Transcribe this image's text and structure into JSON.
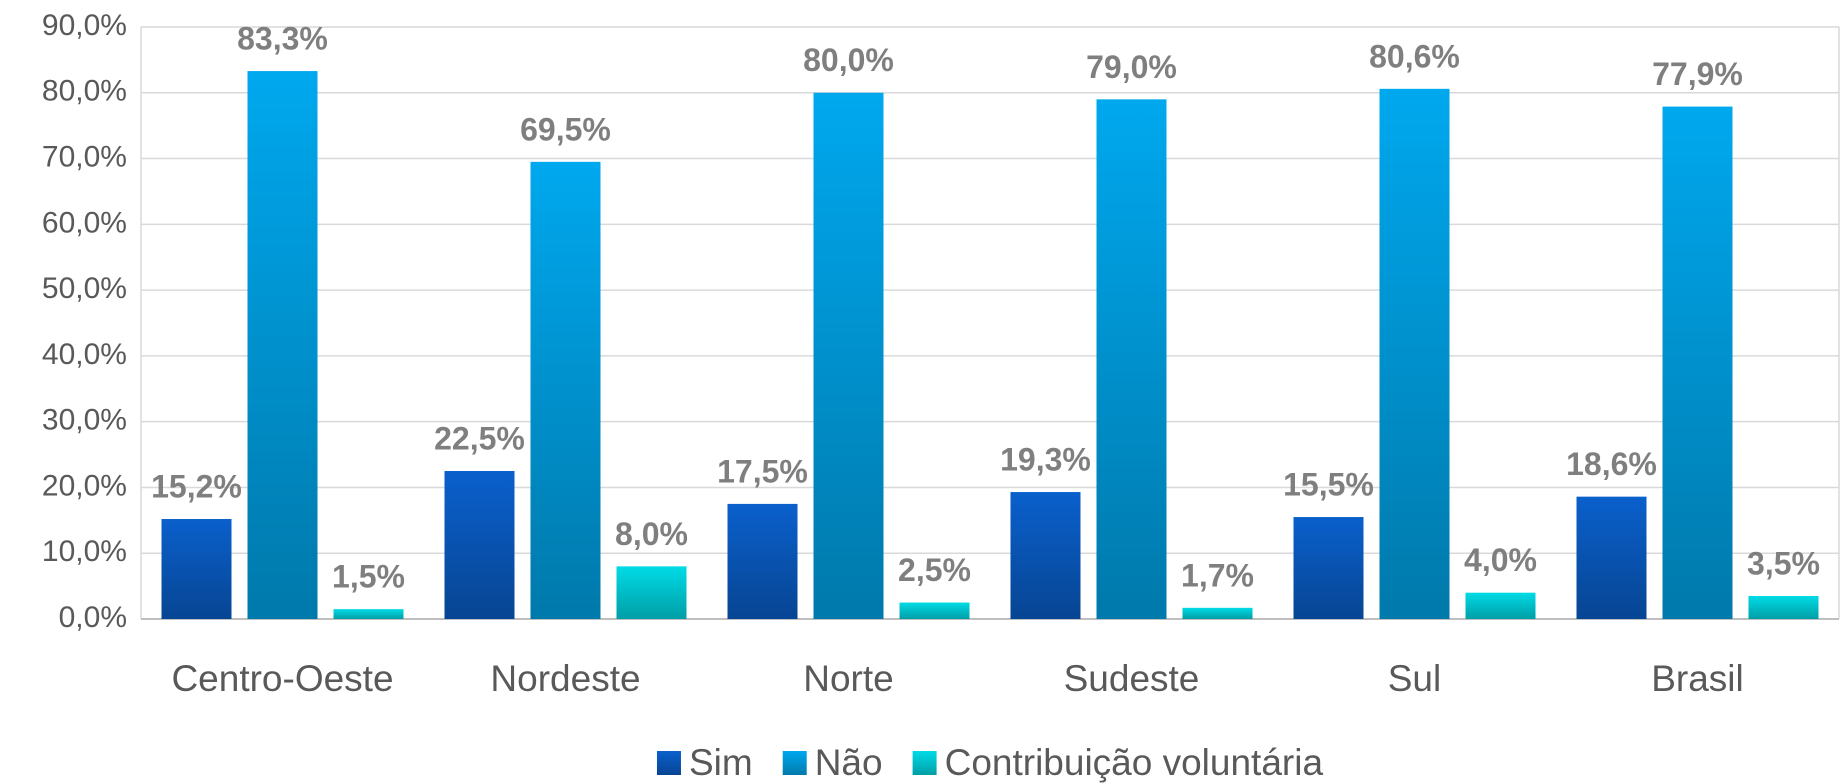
{
  "chart_data": {
    "type": "bar",
    "categories": [
      "Centro-Oeste",
      "Nordeste",
      "Norte",
      "Sudeste",
      "Sul",
      "Brasil"
    ],
    "series": [
      {
        "name": "Sim",
        "color": "#0a60cc",
        "values": [
          15.2,
          22.5,
          17.5,
          19.3,
          15.5,
          18.6
        ],
        "value_labels": [
          "15,2%",
          "22,5%",
          "17,5%",
          "19,3%",
          "15,5%",
          "18,6%"
        ]
      },
      {
        "name": "Não",
        "color": "#00a8ee",
        "values": [
          83.3,
          69.5,
          80.0,
          79.0,
          80.6,
          77.9
        ],
        "value_labels": [
          "83,3%",
          "69,5%",
          "80,0%",
          "79,0%",
          "80,6%",
          "77,9%"
        ]
      },
      {
        "name": "Contribuição voluntária",
        "color": "#00dbe6",
        "values": [
          1.5,
          8.0,
          2.5,
          1.7,
          4.0,
          3.5
        ],
        "value_labels": [
          "1,5%",
          "8,0%",
          "2,5%",
          "1,7%",
          "4,0%",
          "3,5%"
        ]
      }
    ],
    "ylim": [
      0,
      90
    ],
    "yticks": [
      {
        "value": 0,
        "label": "0,0%"
      },
      {
        "value": 10,
        "label": "10,0%"
      },
      {
        "value": 20,
        "label": "20,0%"
      },
      {
        "value": 30,
        "label": "30,0%"
      },
      {
        "value": 40,
        "label": "40,0%"
      },
      {
        "value": 50,
        "label": "50,0%"
      },
      {
        "value": 60,
        "label": "60,0%"
      },
      {
        "value": 70,
        "label": "70,0%"
      },
      {
        "value": 80,
        "label": "80,0%"
      },
      {
        "value": 90,
        "label": "90,0%"
      }
    ],
    "grid": true,
    "legend": "bottom"
  }
}
